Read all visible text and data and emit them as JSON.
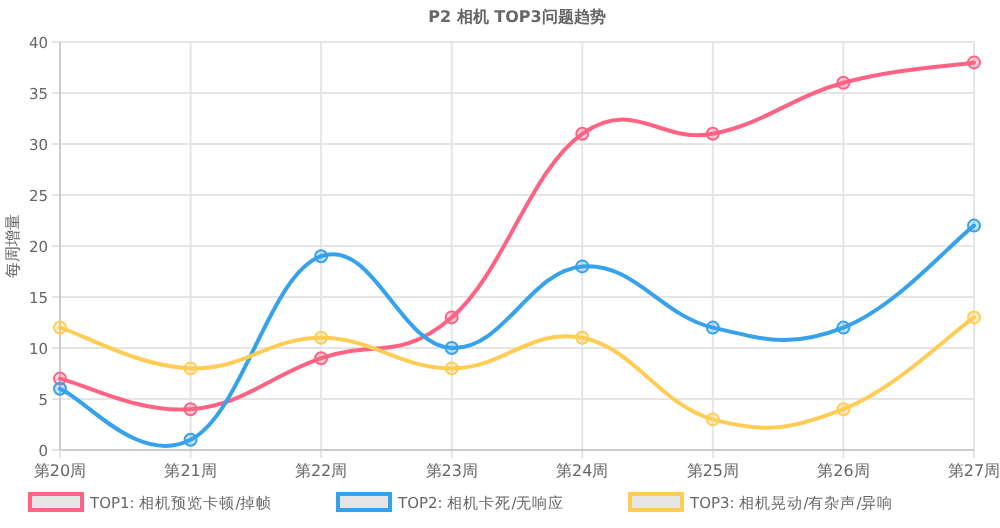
{
  "chart_data": {
    "type": "line",
    "title": "P2 相机 TOP3问题趋势",
    "ylabel": "每周增量",
    "categories": [
      "第20周",
      "第21周",
      "第22周",
      "第23周",
      "第24周",
      "第25周",
      "第26周",
      "第27周"
    ],
    "series": [
      {
        "name": "TOP1: 相机预览卡顿/掉帧",
        "color": "#ff6384",
        "values": [
          7,
          4,
          9,
          13,
          31,
          31,
          36,
          38
        ]
      },
      {
        "name": "TOP2: 相机卡死/无响应",
        "color": "#36a2eb",
        "values": [
          6,
          1,
          19,
          10,
          18,
          12,
          12,
          22
        ]
      },
      {
        "name": "TOP3: 相机晃动/有杂声/异响",
        "color": "#ffcd56",
        "values": [
          12,
          8,
          11,
          8,
          11,
          3,
          4,
          13
        ]
      }
    ],
    "ylim": [
      0,
      40
    ],
    "yticks": [
      0,
      5,
      10,
      15,
      20,
      25,
      30,
      35,
      40
    ],
    "grid": true,
    "legend": "bottom",
    "marker": "circle",
    "line_style": "solid"
  }
}
